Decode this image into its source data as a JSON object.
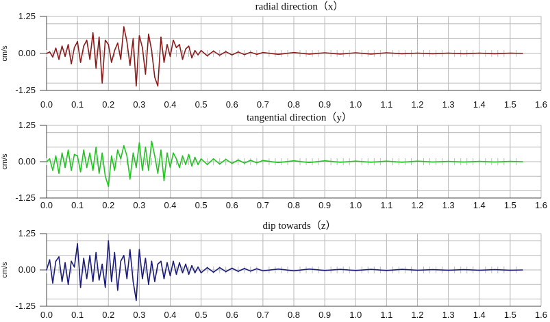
{
  "chart_data": [
    {
      "type": "line",
      "title": "radial direction（x）",
      "ylabel": "cm/s",
      "xlabel": "",
      "xlim": [
        0.0,
        1.6
      ],
      "ylim": [
        -1.25,
        1.25
      ],
      "yticks": [
        "1.25",
        "0.00",
        "-1.25"
      ],
      "xticks": [
        "0.0",
        "0.1",
        "0.2",
        "0.3",
        "0.4",
        "0.5",
        "0.6",
        "0.7",
        "0.8",
        "0.9",
        "1.0",
        "1.1",
        "1.2",
        "1.3",
        "1.4",
        "1.5",
        "1.6"
      ],
      "grid": true,
      "color": "#8b1a1a",
      "series": [
        {
          "x": [
            0.0,
            0.01,
            0.02,
            0.03,
            0.04,
            0.05,
            0.06,
            0.07,
            0.08,
            0.09,
            0.1,
            0.11,
            0.12,
            0.13,
            0.14,
            0.15,
            0.16,
            0.17,
            0.18,
            0.19,
            0.2,
            0.21,
            0.22,
            0.23,
            0.24,
            0.25,
            0.26,
            0.27,
            0.28,
            0.29,
            0.3,
            0.31,
            0.32,
            0.33,
            0.34,
            0.35,
            0.36,
            0.37,
            0.38,
            0.39,
            0.4,
            0.41,
            0.42,
            0.43,
            0.44,
            0.45,
            0.46,
            0.47,
            0.48,
            0.49,
            0.5,
            0.52,
            0.54,
            0.56,
            0.58,
            0.6,
            0.62,
            0.64,
            0.66,
            0.68,
            0.7,
            0.75,
            0.8,
            0.85,
            0.9,
            0.95,
            1.0,
            1.05,
            1.1,
            1.15,
            1.2,
            1.25,
            1.3,
            1.35,
            1.4,
            1.45,
            1.5,
            1.54
          ],
          "y": [
            0.0,
            0.05,
            -0.12,
            0.18,
            -0.2,
            0.25,
            -0.1,
            0.3,
            -0.35,
            0.2,
            0.4,
            -0.3,
            0.25,
            0.45,
            -0.2,
            0.7,
            -0.5,
            0.55,
            -1.0,
            0.45,
            0.3,
            -0.3,
            0.1,
            0.35,
            -0.2,
            0.9,
            0.4,
            -0.4,
            0.5,
            -1.1,
            0.6,
            0.2,
            -0.7,
            0.65,
            0.1,
            -0.8,
            -1.1,
            0.55,
            -0.3,
            0.3,
            -0.1,
            0.45,
            0.2,
            0.3,
            -0.2,
            0.15,
            0.25,
            -0.15,
            0.1,
            -0.05,
            0.1,
            -0.08,
            0.08,
            -0.06,
            0.06,
            -0.05,
            0.05,
            -0.04,
            0.04,
            -0.03,
            0.03,
            -0.03,
            0.03,
            -0.02,
            0.02,
            -0.02,
            0.02,
            -0.02,
            0.02,
            -0.01,
            0.01,
            -0.01,
            0.01,
            -0.01,
            0.01,
            -0.01,
            0.01,
            0.0
          ]
        }
      ]
    },
    {
      "type": "line",
      "title": "tangential direction（y）",
      "ylabel": "cm/s",
      "xlabel": "",
      "xlim": [
        0.0,
        1.6
      ],
      "ylim": [
        -1.25,
        1.25
      ],
      "yticks": [
        "1.25",
        "0.00",
        "-1.25"
      ],
      "xticks": [
        "0.0",
        "0.1",
        "0.2",
        "0.3",
        "0.4",
        "0.5",
        "0.6",
        "0.7",
        "0.8",
        "0.9",
        "1.0",
        "1.1",
        "1.2",
        "1.3",
        "1.4",
        "1.5",
        "1.6"
      ],
      "grid": true,
      "color": "#1fc41f",
      "series": [
        {
          "x": [
            0.0,
            0.01,
            0.02,
            0.03,
            0.04,
            0.05,
            0.06,
            0.07,
            0.08,
            0.09,
            0.1,
            0.11,
            0.12,
            0.13,
            0.14,
            0.15,
            0.16,
            0.17,
            0.18,
            0.19,
            0.2,
            0.21,
            0.22,
            0.23,
            0.24,
            0.25,
            0.26,
            0.27,
            0.28,
            0.29,
            0.3,
            0.31,
            0.32,
            0.33,
            0.34,
            0.35,
            0.36,
            0.37,
            0.38,
            0.39,
            0.4,
            0.41,
            0.42,
            0.43,
            0.44,
            0.45,
            0.46,
            0.47,
            0.48,
            0.49,
            0.5,
            0.52,
            0.54,
            0.56,
            0.58,
            0.6,
            0.62,
            0.64,
            0.66,
            0.68,
            0.7,
            0.75,
            0.8,
            0.85,
            0.9,
            0.95,
            1.0,
            1.05,
            1.1,
            1.15,
            1.2,
            1.25,
            1.3,
            1.35,
            1.4,
            1.45,
            1.5,
            1.54
          ],
          "y": [
            0.0,
            0.1,
            -0.3,
            0.2,
            -0.4,
            0.3,
            -0.2,
            0.4,
            -0.3,
            0.25,
            0.2,
            -0.35,
            0.4,
            -0.2,
            0.3,
            -0.3,
            0.5,
            -0.4,
            0.3,
            -0.5,
            -0.85,
            0.2,
            -0.3,
            0.4,
            0.1,
            0.55,
            0.2,
            -0.6,
            0.3,
            -0.2,
            0.65,
            -0.3,
            0.5,
            -0.3,
            0.7,
            0.2,
            -0.4,
            0.4,
            -0.65,
            0.3,
            -0.2,
            0.3,
            0.1,
            -0.2,
            0.2,
            -0.1,
            0.25,
            -0.15,
            0.15,
            -0.1,
            0.1,
            -0.1,
            0.1,
            -0.08,
            0.08,
            -0.06,
            0.06,
            -0.05,
            0.05,
            -0.04,
            0.04,
            -0.03,
            0.03,
            -0.03,
            0.03,
            -0.02,
            0.02,
            -0.02,
            0.02,
            -0.02,
            0.02,
            -0.01,
            0.01,
            -0.01,
            0.01,
            -0.01,
            0.01,
            0.0
          ]
        }
      ]
    },
    {
      "type": "line",
      "title": "dip towards（z）",
      "ylabel": "cm/s",
      "xlabel": "",
      "xlim": [
        0.0,
        1.6
      ],
      "ylim": [
        -1.25,
        1.25
      ],
      "yticks": [
        "1.25",
        "0.00",
        "-1.25"
      ],
      "xticks": [
        "0.0",
        "0.1",
        "0.2",
        "0.3",
        "0.4",
        "0.5",
        "0.6",
        "0.7",
        "0.8",
        "0.9",
        "1.0",
        "1.1",
        "1.2",
        "1.3",
        "1.4",
        "1.5",
        "1.6"
      ],
      "grid": true,
      "color": "#1a1a7a",
      "series": [
        {
          "x": [
            0.0,
            0.01,
            0.02,
            0.03,
            0.04,
            0.05,
            0.06,
            0.07,
            0.08,
            0.09,
            0.1,
            0.11,
            0.12,
            0.13,
            0.14,
            0.15,
            0.16,
            0.17,
            0.18,
            0.19,
            0.2,
            0.21,
            0.22,
            0.23,
            0.24,
            0.25,
            0.26,
            0.27,
            0.28,
            0.29,
            0.3,
            0.31,
            0.32,
            0.33,
            0.34,
            0.35,
            0.36,
            0.37,
            0.38,
            0.39,
            0.4,
            0.41,
            0.42,
            0.43,
            0.44,
            0.45,
            0.46,
            0.47,
            0.48,
            0.49,
            0.5,
            0.52,
            0.54,
            0.56,
            0.58,
            0.6,
            0.62,
            0.64,
            0.66,
            0.68,
            0.7,
            0.75,
            0.8,
            0.85,
            0.9,
            0.95,
            1.0,
            1.05,
            1.1,
            1.15,
            1.2,
            1.25,
            1.3,
            1.35,
            1.4,
            1.45,
            1.5,
            1.54
          ],
          "y": [
            0.0,
            0.35,
            -0.45,
            0.3,
            0.45,
            -0.4,
            0.25,
            -0.5,
            0.3,
            0.1,
            0.9,
            -0.6,
            0.4,
            -0.3,
            0.5,
            -0.4,
            0.6,
            -0.35,
            0.2,
            -0.6,
            1.0,
            -0.4,
            0.6,
            -0.7,
            0.3,
            0.5,
            -0.3,
            0.7,
            -0.4,
            -1.05,
            0.7,
            -0.3,
            0.4,
            -0.5,
            0.3,
            -0.4,
            0.2,
            0.3,
            -0.3,
            0.25,
            -0.2,
            0.3,
            -0.15,
            0.25,
            -0.1,
            0.2,
            -0.15,
            0.15,
            -0.1,
            0.1,
            -0.1,
            0.08,
            -0.08,
            0.08,
            -0.06,
            0.06,
            -0.05,
            0.05,
            -0.04,
            0.04,
            -0.03,
            0.03,
            -0.03,
            0.03,
            -0.02,
            0.02,
            -0.02,
            0.02,
            -0.02,
            0.02,
            -0.01,
            0.01,
            -0.01,
            0.01,
            -0.01,
            0.01,
            -0.01,
            0.0
          ]
        }
      ]
    }
  ]
}
